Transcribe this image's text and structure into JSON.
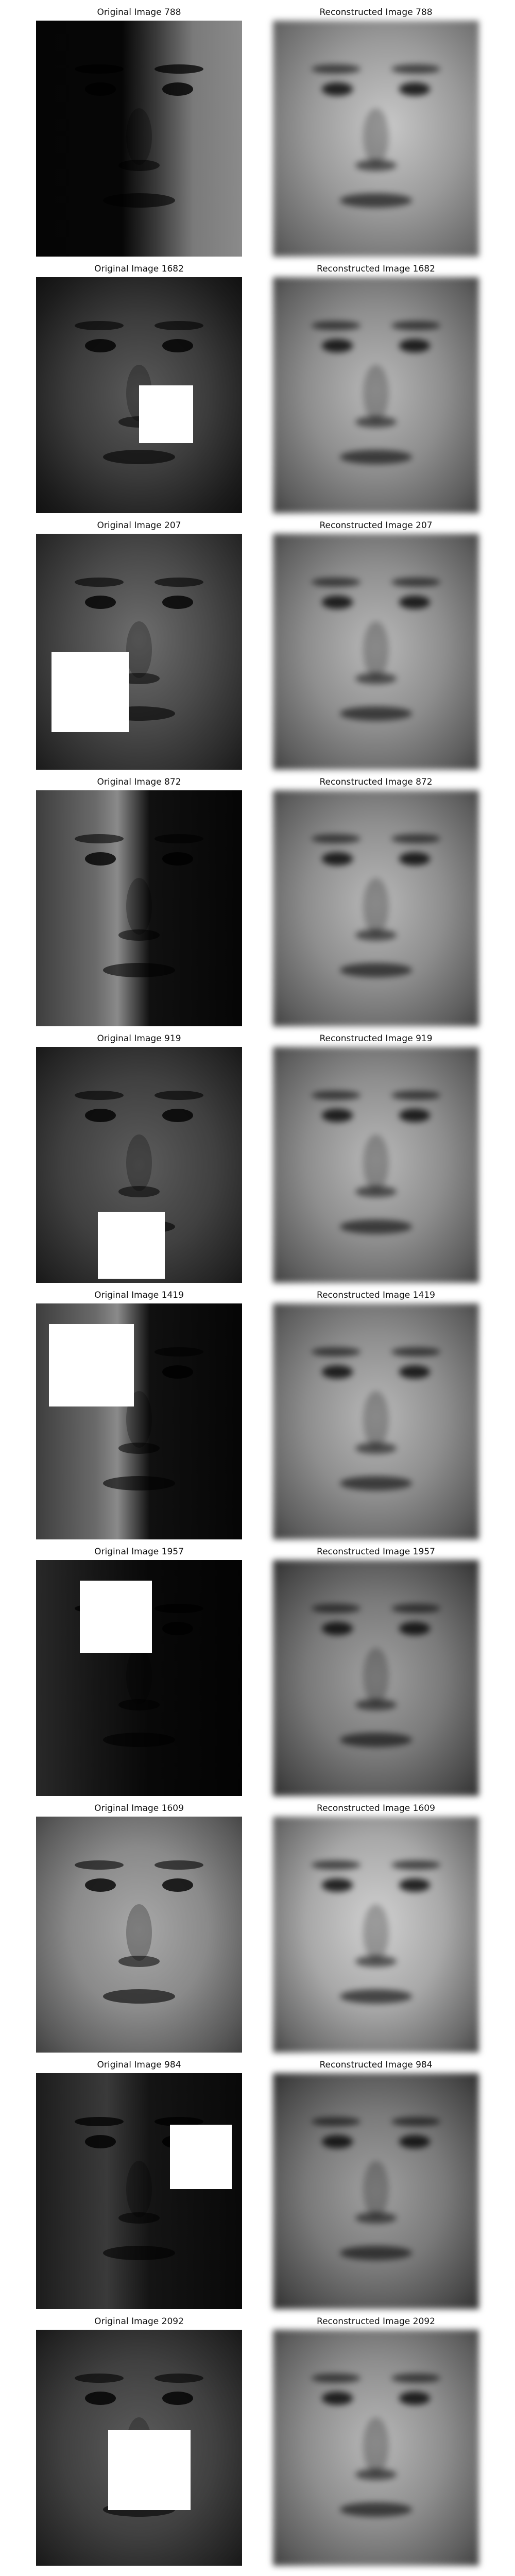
{
  "figure": {
    "rows": [
      {
        "original": {
          "title": "Original Image 788",
          "lighting": "right-side",
          "occluded": false
        },
        "reconstructed": {
          "title": "Reconstructed Image 788"
        }
      },
      {
        "original": {
          "title": "Original Image 1682",
          "lighting": "frontal-dark-skin",
          "occluded": true
        },
        "reconstructed": {
          "title": "Reconstructed Image 1682"
        }
      },
      {
        "original": {
          "title": "Original Image 207",
          "lighting": "frontal",
          "occluded": true
        },
        "reconstructed": {
          "title": "Reconstructed Image 207"
        }
      },
      {
        "original": {
          "title": "Original Image 872",
          "lighting": "left-side",
          "occluded": false
        },
        "reconstructed": {
          "title": "Reconstructed Image 872"
        }
      },
      {
        "original": {
          "title": "Original Image 919",
          "lighting": "frontal-dim",
          "occluded": true
        },
        "reconstructed": {
          "title": "Reconstructed Image 919"
        }
      },
      {
        "original": {
          "title": "Original Image 1419",
          "lighting": "left-side",
          "occluded": true
        },
        "reconstructed": {
          "title": "Reconstructed Image 1419"
        }
      },
      {
        "original": {
          "title": "Original Image 1957",
          "lighting": "very-dark-left",
          "occluded": true
        },
        "reconstructed": {
          "title": "Reconstructed Image 1957"
        }
      },
      {
        "original": {
          "title": "Original Image 1609",
          "lighting": "frontal-bright",
          "occluded": false
        },
        "reconstructed": {
          "title": "Reconstructed Image 1609"
        }
      },
      {
        "original": {
          "title": "Original Image 984",
          "lighting": "dark-left",
          "occluded": true
        },
        "reconstructed": {
          "title": "Reconstructed Image 984"
        }
      },
      {
        "original": {
          "title": "Original Image 2092",
          "lighting": "frontal-dim",
          "occluded": true
        },
        "reconstructed": {
          "title": "Reconstructed Image 2092"
        }
      }
    ]
  }
}
